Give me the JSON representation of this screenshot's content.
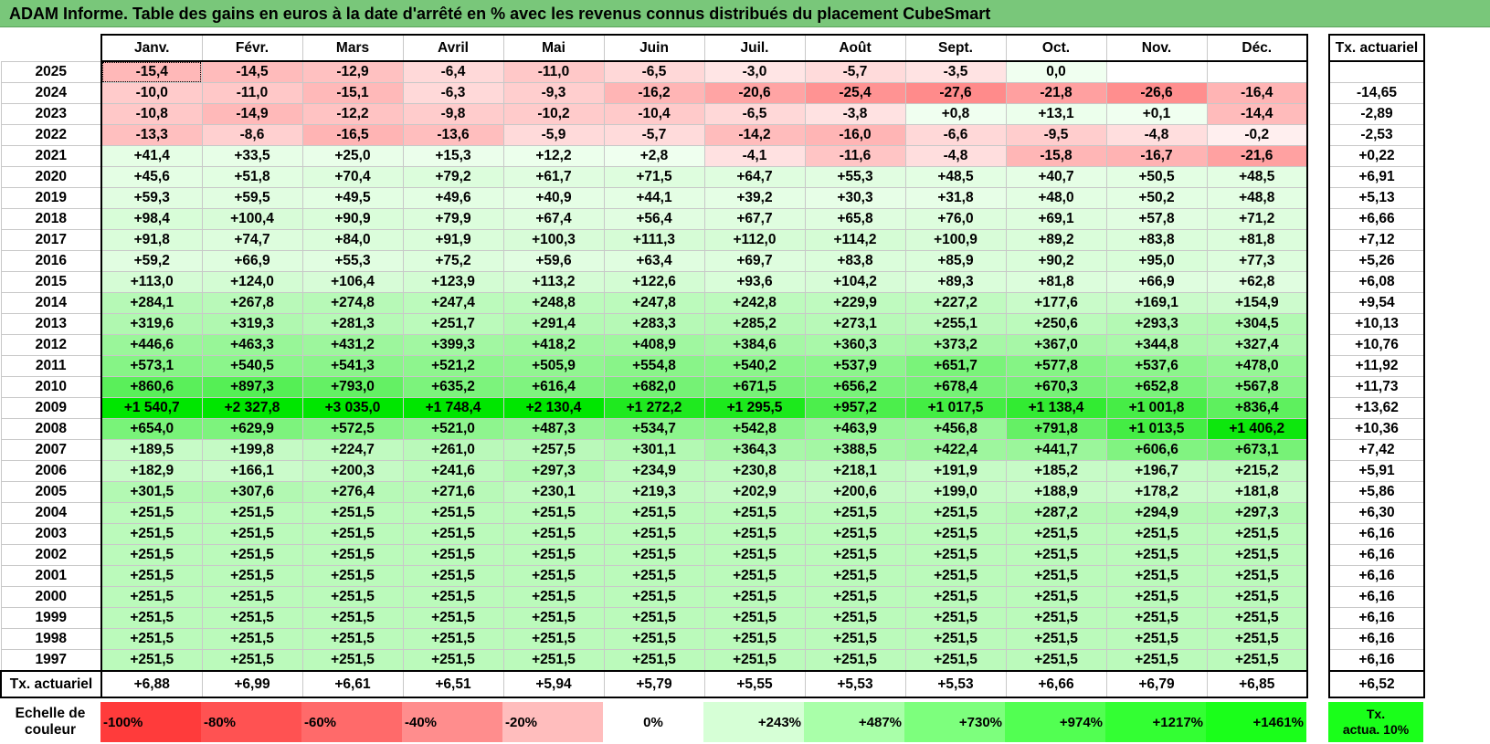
{
  "title": "ADAM Informe. Table des gains en euros à la date d'arrêté en % avec les revenus connus distribués du placement CubeSmart",
  "chart_data": {
    "type": "heatmap",
    "title": "ADAM Informe. Table des gains en euros à la date d'arrêté en % avec les revenus connus distribués du placement CubeSmart",
    "columns": [
      "Janv.",
      "Févr.",
      "Mars",
      "Avril",
      "Mai",
      "Juin",
      "Juil.",
      "Août",
      "Sept.",
      "Oct.",
      "Nov.",
      "Déc."
    ],
    "actuarial_header": "Tx. actuariel",
    "rows": [
      {
        "year": "2025",
        "values": [
          "-15,4",
          "-14,5",
          "-12,9",
          "-6,4",
          "-11,0",
          "-6,5",
          "-3,0",
          "-5,7",
          "-3,5",
          "0,0",
          "",
          ""
        ],
        "rate": ""
      },
      {
        "year": "2024",
        "values": [
          "-10,0",
          "-11,0",
          "-15,1",
          "-6,3",
          "-9,3",
          "-16,2",
          "-20,6",
          "-25,4",
          "-27,6",
          "-21,8",
          "-26,6",
          "-16,4"
        ],
        "rate": "-14,65"
      },
      {
        "year": "2023",
        "values": [
          "-10,8",
          "-14,9",
          "-12,2",
          "-9,8",
          "-10,2",
          "-10,4",
          "-6,5",
          "-3,8",
          "+0,8",
          "+13,1",
          "+0,1",
          "-14,4"
        ],
        "rate": "-2,89"
      },
      {
        "year": "2022",
        "values": [
          "-13,3",
          "-8,6",
          "-16,5",
          "-13,6",
          "-5,9",
          "-5,7",
          "-14,2",
          "-16,0",
          "-6,6",
          "-9,5",
          "-4,8",
          "-0,2"
        ],
        "rate": "-2,53"
      },
      {
        "year": "2021",
        "values": [
          "+41,4",
          "+33,5",
          "+25,0",
          "+15,3",
          "+12,2",
          "+2,8",
          "-4,1",
          "-11,6",
          "-4,8",
          "-15,8",
          "-16,7",
          "-21,6"
        ],
        "rate": "+0,22"
      },
      {
        "year": "2020",
        "values": [
          "+45,6",
          "+51,8",
          "+70,4",
          "+79,2",
          "+61,7",
          "+71,5",
          "+64,7",
          "+55,3",
          "+48,5",
          "+40,7",
          "+50,5",
          "+48,5"
        ],
        "rate": "+6,91"
      },
      {
        "year": "2019",
        "values": [
          "+59,3",
          "+59,5",
          "+49,5",
          "+49,6",
          "+40,9",
          "+44,1",
          "+39,2",
          "+30,3",
          "+31,8",
          "+48,0",
          "+50,2",
          "+48,8"
        ],
        "rate": "+5,13"
      },
      {
        "year": "2018",
        "values": [
          "+98,4",
          "+100,4",
          "+90,9",
          "+79,9",
          "+67,4",
          "+56,4",
          "+67,7",
          "+65,8",
          "+76,0",
          "+69,1",
          "+57,8",
          "+71,2"
        ],
        "rate": "+6,66"
      },
      {
        "year": "2017",
        "values": [
          "+91,8",
          "+74,7",
          "+84,0",
          "+91,9",
          "+100,3",
          "+111,3",
          "+112,0",
          "+114,2",
          "+100,9",
          "+89,2",
          "+83,8",
          "+81,8"
        ],
        "rate": "+7,12"
      },
      {
        "year": "2016",
        "values": [
          "+59,2",
          "+66,9",
          "+55,3",
          "+75,2",
          "+59,6",
          "+63,4",
          "+69,7",
          "+83,8",
          "+85,9",
          "+90,2",
          "+95,0",
          "+77,3"
        ],
        "rate": "+5,26"
      },
      {
        "year": "2015",
        "values": [
          "+113,0",
          "+124,0",
          "+106,4",
          "+123,9",
          "+113,2",
          "+122,6",
          "+93,6",
          "+104,2",
          "+89,3",
          "+81,8",
          "+66,9",
          "+62,8"
        ],
        "rate": "+6,08"
      },
      {
        "year": "2014",
        "values": [
          "+284,1",
          "+267,8",
          "+274,8",
          "+247,4",
          "+248,8",
          "+247,8",
          "+242,8",
          "+229,9",
          "+227,2",
          "+177,6",
          "+169,1",
          "+154,9"
        ],
        "rate": "+9,54"
      },
      {
        "year": "2013",
        "values": [
          "+319,6",
          "+319,3",
          "+281,3",
          "+251,7",
          "+291,4",
          "+283,3",
          "+285,2",
          "+273,1",
          "+255,1",
          "+250,6",
          "+293,3",
          "+304,5"
        ],
        "rate": "+10,13"
      },
      {
        "year": "2012",
        "values": [
          "+446,6",
          "+463,3",
          "+431,2",
          "+399,3",
          "+418,2",
          "+408,9",
          "+384,6",
          "+360,3",
          "+373,2",
          "+367,0",
          "+344,8",
          "+327,4"
        ],
        "rate": "+10,76"
      },
      {
        "year": "2011",
        "values": [
          "+573,1",
          "+540,5",
          "+541,3",
          "+521,2",
          "+505,9",
          "+554,8",
          "+540,2",
          "+537,9",
          "+651,7",
          "+577,8",
          "+537,6",
          "+478,0"
        ],
        "rate": "+11,92"
      },
      {
        "year": "2010",
        "values": [
          "+860,6",
          "+897,3",
          "+793,0",
          "+635,2",
          "+616,4",
          "+682,0",
          "+671,5",
          "+656,2",
          "+678,4",
          "+670,3",
          "+652,8",
          "+567,8"
        ],
        "rate": "+11,73"
      },
      {
        "year": "2009",
        "values": [
          "+1 540,7",
          "+2 327,8",
          "+3 035,0",
          "+1 748,4",
          "+2 130,4",
          "+1 272,2",
          "+1 295,5",
          "+957,2",
          "+1 017,5",
          "+1 138,4",
          "+1 001,8",
          "+836,4"
        ],
        "rate": "+13,62"
      },
      {
        "year": "2008",
        "values": [
          "+654,0",
          "+629,9",
          "+572,5",
          "+521,0",
          "+487,3",
          "+534,7",
          "+542,8",
          "+463,9",
          "+456,8",
          "+791,8",
          "+1 013,5",
          "+1 406,2"
        ],
        "rate": "+10,36"
      },
      {
        "year": "2007",
        "values": [
          "+189,5",
          "+199,8",
          "+224,7",
          "+261,0",
          "+257,5",
          "+301,1",
          "+364,3",
          "+388,5",
          "+422,4",
          "+441,7",
          "+606,6",
          "+673,1"
        ],
        "rate": "+7,42"
      },
      {
        "year": "2006",
        "values": [
          "+182,9",
          "+166,1",
          "+200,3",
          "+241,6",
          "+297,3",
          "+234,9",
          "+230,8",
          "+218,1",
          "+191,9",
          "+185,2",
          "+196,7",
          "+215,2"
        ],
        "rate": "+5,91"
      },
      {
        "year": "2005",
        "values": [
          "+301,5",
          "+307,6",
          "+276,4",
          "+271,6",
          "+230,1",
          "+219,3",
          "+202,9",
          "+200,6",
          "+199,0",
          "+188,9",
          "+178,2",
          "+181,8"
        ],
        "rate": "+5,86"
      },
      {
        "year": "2004",
        "values": [
          "+251,5",
          "+251,5",
          "+251,5",
          "+251,5",
          "+251,5",
          "+251,5",
          "+251,5",
          "+251,5",
          "+251,5",
          "+287,2",
          "+294,9",
          "+297,3"
        ],
        "rate": "+6,30"
      },
      {
        "year": "2003",
        "values": [
          "+251,5",
          "+251,5",
          "+251,5",
          "+251,5",
          "+251,5",
          "+251,5",
          "+251,5",
          "+251,5",
          "+251,5",
          "+251,5",
          "+251,5",
          "+251,5"
        ],
        "rate": "+6,16"
      },
      {
        "year": "2002",
        "values": [
          "+251,5",
          "+251,5",
          "+251,5",
          "+251,5",
          "+251,5",
          "+251,5",
          "+251,5",
          "+251,5",
          "+251,5",
          "+251,5",
          "+251,5",
          "+251,5"
        ],
        "rate": "+6,16"
      },
      {
        "year": "2001",
        "values": [
          "+251,5",
          "+251,5",
          "+251,5",
          "+251,5",
          "+251,5",
          "+251,5",
          "+251,5",
          "+251,5",
          "+251,5",
          "+251,5",
          "+251,5",
          "+251,5"
        ],
        "rate": "+6,16"
      },
      {
        "year": "2000",
        "values": [
          "+251,5",
          "+251,5",
          "+251,5",
          "+251,5",
          "+251,5",
          "+251,5",
          "+251,5",
          "+251,5",
          "+251,5",
          "+251,5",
          "+251,5",
          "+251,5"
        ],
        "rate": "+6,16"
      },
      {
        "year": "1999",
        "values": [
          "+251,5",
          "+251,5",
          "+251,5",
          "+251,5",
          "+251,5",
          "+251,5",
          "+251,5",
          "+251,5",
          "+251,5",
          "+251,5",
          "+251,5",
          "+251,5"
        ],
        "rate": "+6,16"
      },
      {
        "year": "1998",
        "values": [
          "+251,5",
          "+251,5",
          "+251,5",
          "+251,5",
          "+251,5",
          "+251,5",
          "+251,5",
          "+251,5",
          "+251,5",
          "+251,5",
          "+251,5",
          "+251,5"
        ],
        "rate": "+6,16"
      },
      {
        "year": "1997",
        "values": [
          "+251,5",
          "+251,5",
          "+251,5",
          "+251,5",
          "+251,5",
          "+251,5",
          "+251,5",
          "+251,5",
          "+251,5",
          "+251,5",
          "+251,5",
          "+251,5"
        ],
        "rate": "+6,16"
      }
    ],
    "totals": {
      "label": "Tx. actuariel",
      "values": [
        "+6,88",
        "+6,99",
        "+6,61",
        "+6,51",
        "+5,94",
        "+5,79",
        "+5,55",
        "+5,53",
        "+5,53",
        "+6,66",
        "+6,79",
        "+6,85"
      ],
      "rate": "+6,52"
    },
    "color_scale": {
      "label_line1": "Echelle de",
      "label_line2": "couleur",
      "stops": [
        {
          "label": "-100%",
          "color": "#ff3b3b"
        },
        {
          "label": "-80%",
          "color": "#ff5252"
        },
        {
          "label": "-60%",
          "color": "#ff6a6a"
        },
        {
          "label": "-40%",
          "color": "#ff8d8d"
        },
        {
          "label": "-20%",
          "color": "#ffbdbd"
        },
        {
          "label": "0%",
          "color": "#ffffff"
        },
        {
          "label": "+243%",
          "color": "#d6ffd6"
        },
        {
          "label": "+487%",
          "color": "#a9ffa9"
        },
        {
          "label": "+730%",
          "color": "#7dff7d"
        },
        {
          "label": "+974%",
          "color": "#52ff52"
        },
        {
          "label": "+1217%",
          "color": "#33ff33"
        },
        {
          "label": "+1461%",
          "color": "#1aff1a"
        }
      ],
      "actua_line1": "Tx.",
      "actua_line2": "actua. 10%",
      "actua_color": "#1aff1a"
    },
    "colors": {
      "title_bg": "#79c77a",
      "neg_max": "#ff3b3b",
      "pos_max": "#00e600"
    }
  }
}
